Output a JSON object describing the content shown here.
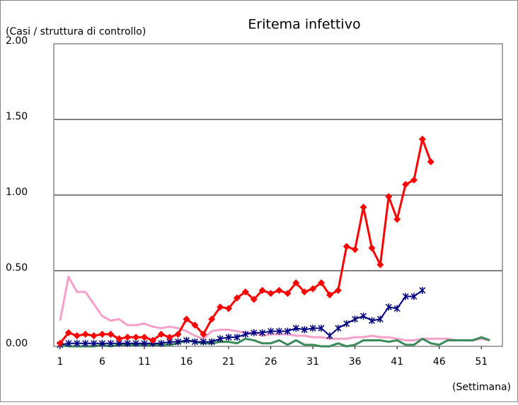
{
  "chart_data": {
    "type": "line",
    "title": "Eritema infettivo",
    "y_label": "(Casi / struttura di controllo)",
    "x_label": "(Settimana)",
    "x": [
      1,
      2,
      3,
      4,
      5,
      6,
      7,
      8,
      9,
      10,
      11,
      12,
      13,
      14,
      15,
      16,
      17,
      18,
      19,
      20,
      21,
      22,
      23,
      24,
      25,
      26,
      27,
      28,
      29,
      30,
      31,
      32,
      33,
      34,
      35,
      36,
      37,
      38,
      39,
      40,
      41,
      42,
      43,
      44,
      45,
      46,
      47,
      48,
      49,
      50,
      51,
      52
    ],
    "xlim": [
      0.25,
      53.5
    ],
    "xticks": [
      1,
      6,
      11,
      16,
      21,
      26,
      31,
      36,
      41,
      46,
      51
    ],
    "ylim": [
      0,
      2
    ],
    "yticks": [
      {
        "value": 0,
        "label": "0.00"
      },
      {
        "value": 0.5,
        "label": "0.50"
      },
      {
        "value": 1,
        "label": "1.00"
      },
      {
        "value": 1.5,
        "label": "1.50"
      },
      {
        "value": 2,
        "label": "2.00"
      }
    ],
    "grid": true,
    "series": [
      {
        "color": "#f4a0c8",
        "marker": "none",
        "values": [
          0.17,
          0.46,
          0.36,
          0.36,
          0.28,
          0.2,
          0.17,
          0.18,
          0.14,
          0.14,
          0.15,
          0.13,
          0.12,
          0.13,
          0.12,
          0.1,
          0.07,
          0.05,
          0.1,
          0.11,
          0.11,
          0.1,
          0.09,
          0.09,
          0.07,
          0.08,
          0.08,
          0.08,
          0.07,
          0.07,
          0.06,
          0.06,
          0.05,
          0.05,
          0.05,
          0.06,
          0.06,
          0.07,
          0.06,
          0.06,
          0.05,
          0.04,
          0.04,
          0.05,
          0.05,
          0.05,
          0.05,
          0.04,
          0.04,
          0.04,
          0.05,
          0.04
        ]
      },
      {
        "color": "#3a8a5a",
        "marker": "none",
        "values": [
          0.01,
          0.0,
          0.0,
          0.0,
          0.0,
          0.01,
          0.0,
          0.01,
          0.01,
          0.01,
          0.01,
          0.01,
          0.01,
          0.01,
          0.02,
          0.04,
          0.03,
          0.02,
          0.02,
          0.03,
          0.03,
          0.02,
          0.05,
          0.04,
          0.02,
          0.02,
          0.04,
          0.01,
          0.04,
          0.01,
          0.01,
          0.0,
          0.0,
          0.02,
          0.0,
          0.01,
          0.04,
          0.04,
          0.04,
          0.03,
          0.04,
          0.01,
          0.01,
          0.05,
          0.02,
          0.01,
          0.04,
          0.04,
          0.04,
          0.04,
          0.06,
          0.04
        ]
      },
      {
        "color": "#00007f",
        "marker": "asterisk",
        "values": [
          0.01,
          0.02,
          0.02,
          0.02,
          0.02,
          0.02,
          0.02,
          0.02,
          0.02,
          0.02,
          0.02,
          0.02,
          0.02,
          0.03,
          0.03,
          0.04,
          0.03,
          0.03,
          0.03,
          0.05,
          0.06,
          0.06,
          0.08,
          0.09,
          0.09,
          0.1,
          0.1,
          0.1,
          0.12,
          0.11,
          0.12,
          0.12,
          0.07,
          0.12,
          0.15,
          0.18,
          0.2,
          0.17,
          0.18,
          0.26,
          0.25,
          0.33,
          0.33,
          0.37,
          null,
          null,
          null,
          null,
          null,
          null,
          null,
          null
        ]
      },
      {
        "color": "#ff0000",
        "marker": "diamond",
        "values": [
          0.02,
          0.09,
          0.07,
          0.08,
          0.07,
          0.08,
          0.08,
          0.05,
          0.06,
          0.06,
          0.06,
          0.04,
          0.08,
          0.06,
          0.08,
          0.18,
          0.14,
          0.08,
          0.18,
          0.26,
          0.25,
          0.32,
          0.36,
          0.31,
          0.37,
          0.35,
          0.37,
          0.35,
          0.42,
          0.36,
          0.38,
          0.42,
          0.34,
          0.37,
          0.66,
          0.64,
          0.92,
          0.65,
          0.54,
          0.99,
          0.84,
          1.07,
          1.1,
          1.37,
          1.22,
          null,
          null,
          null,
          null,
          null,
          null,
          null
        ]
      }
    ]
  }
}
